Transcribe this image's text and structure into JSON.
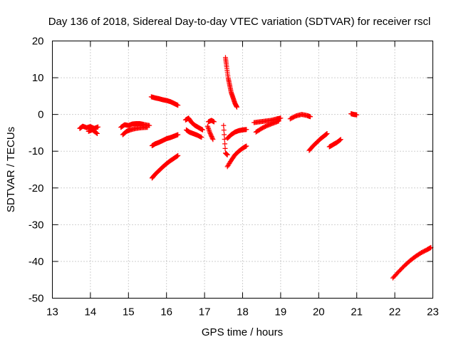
{
  "chart_data": {
    "type": "scatter",
    "title": "Day 136 of 2018, Sidereal Day-to-day VTEC variation (SDTVAR) for receiver rscl",
    "xlabel": "GPS time / hours",
    "ylabel": "SDTVAR / TECUs",
    "xlim": [
      13,
      23
    ],
    "ylim": [
      -50,
      20
    ],
    "xticks": [
      13,
      14,
      15,
      16,
      17,
      18,
      19,
      20,
      21,
      22,
      23
    ],
    "yticks": [
      -50,
      -40,
      -30,
      -20,
      -10,
      0,
      10,
      20
    ],
    "grid": true,
    "marker": "+",
    "color": "#ff0000",
    "segments": [
      {
        "x": [
          13.72,
          13.8,
          13.9,
          14.0,
          14.1,
          14.2
        ],
        "y": [
          -3.8,
          -3.2,
          -3.6,
          -3.3,
          -3.8,
          -3.4
        ]
      },
      {
        "x": [
          13.95,
          14.05,
          14.18
        ],
        "y": [
          -4.6,
          -4.2,
          -5.2
        ]
      },
      {
        "x": [
          14.8,
          14.9,
          15.0,
          15.1,
          15.2,
          15.3,
          15.4,
          15.55
        ],
        "y": [
          -3.5,
          -2.8,
          -3.0,
          -2.6,
          -2.5,
          -2.5,
          -2.7,
          -3.0
        ]
      },
      {
        "x": [
          14.85,
          14.95,
          15.05,
          15.2,
          15.35,
          15.5
        ],
        "y": [
          -5.5,
          -4.6,
          -4.2,
          -3.8,
          -3.6,
          -3.5
        ]
      },
      {
        "x": [
          15.6,
          15.7,
          15.8,
          15.9,
          16.0,
          16.1,
          16.2,
          16.3
        ],
        "y": [
          4.8,
          4.5,
          4.3,
          4.0,
          3.8,
          3.5,
          3.0,
          2.5
        ]
      },
      {
        "x": [
          15.62,
          15.7,
          15.8,
          15.9,
          16.0,
          16.1,
          16.2,
          16.3
        ],
        "y": [
          -8.5,
          -8.0,
          -7.6,
          -7.1,
          -6.6,
          -6.3,
          -5.9,
          -5.5
        ]
      },
      {
        "x": [
          15.62,
          15.7,
          15.8,
          15.9,
          16.0,
          16.1,
          16.2,
          16.3
        ],
        "y": [
          -17.3,
          -16.3,
          -15.3,
          -14.3,
          -13.4,
          -12.6,
          -11.9,
          -11.2
        ]
      },
      {
        "x": [
          16.5,
          16.58,
          16.66,
          16.75,
          16.85,
          16.95
        ],
        "y": [
          -1.5,
          -1.0,
          -2.2,
          -3.0,
          -3.6,
          -4.2
        ]
      },
      {
        "x": [
          16.52,
          16.6,
          16.7,
          16.8,
          16.92
        ],
        "y": [
          -4.2,
          -4.8,
          -5.2,
          -5.6,
          -6.2
        ]
      },
      {
        "x": [
          17.08,
          17.15,
          17.22
        ],
        "y": [
          -3.2,
          -5.2,
          -6.8
        ]
      },
      {
        "x": [
          17.1,
          17.18,
          17.25
        ],
        "y": [
          -2.0,
          -1.6,
          -2.0
        ]
      },
      {
        "x": [
          17.5,
          17.55,
          17.6
        ],
        "y": [
          -3.0,
          -10.5,
          -11.0
        ]
      },
      {
        "x": [
          17.55,
          17.58,
          17.62,
          17.66,
          17.7,
          17.75,
          17.8,
          17.85
        ],
        "y": [
          15.5,
          13.0,
          10.0,
          8.0,
          6.0,
          4.5,
          3.0,
          2.0
        ]
      },
      {
        "x": [
          17.6,
          17.7,
          17.8,
          17.9,
          18.0,
          18.1
        ],
        "y": [
          -6.5,
          -5.5,
          -4.8,
          -4.4,
          -4.2,
          -4.1
        ]
      },
      {
        "x": [
          17.6,
          17.7,
          17.8,
          17.9,
          18.0,
          18.1
        ],
        "y": [
          -14.2,
          -12.5,
          -11.0,
          -10.0,
          -9.2,
          -8.6
        ]
      },
      {
        "x": [
          18.3,
          18.45,
          18.6,
          18.75,
          18.9,
          19.0
        ],
        "y": [
          -2.2,
          -2.0,
          -1.8,
          -1.6,
          -1.2,
          -1.0
        ]
      },
      {
        "x": [
          18.35,
          18.5,
          18.65,
          18.8,
          18.95
        ],
        "y": [
          -4.8,
          -3.8,
          -3.0,
          -2.4,
          -1.8
        ]
      },
      {
        "x": [
          19.25,
          19.4,
          19.55,
          19.7,
          19.78
        ],
        "y": [
          -1.2,
          -0.4,
          0.0,
          -0.3,
          -0.6
        ]
      },
      {
        "x": [
          19.75,
          19.85,
          19.95,
          20.05,
          20.15,
          20.22
        ],
        "y": [
          -9.8,
          -8.6,
          -7.6,
          -6.6,
          -5.8,
          -5.2
        ]
      },
      {
        "x": [
          20.28,
          20.38,
          20.48,
          20.58
        ],
        "y": [
          -8.8,
          -8.2,
          -7.6,
          -6.8
        ]
      },
      {
        "x": [
          20.85,
          20.92,
          21.0
        ],
        "y": [
          0.2,
          0.0,
          -0.1
        ]
      },
      {
        "x": [
          21.95,
          22.1,
          22.25,
          22.4,
          22.55,
          22.7,
          22.85,
          22.95
        ],
        "y": [
          -44.5,
          -42.8,
          -41.2,
          -39.8,
          -38.6,
          -37.6,
          -36.8,
          -36.2
        ]
      }
    ]
  }
}
